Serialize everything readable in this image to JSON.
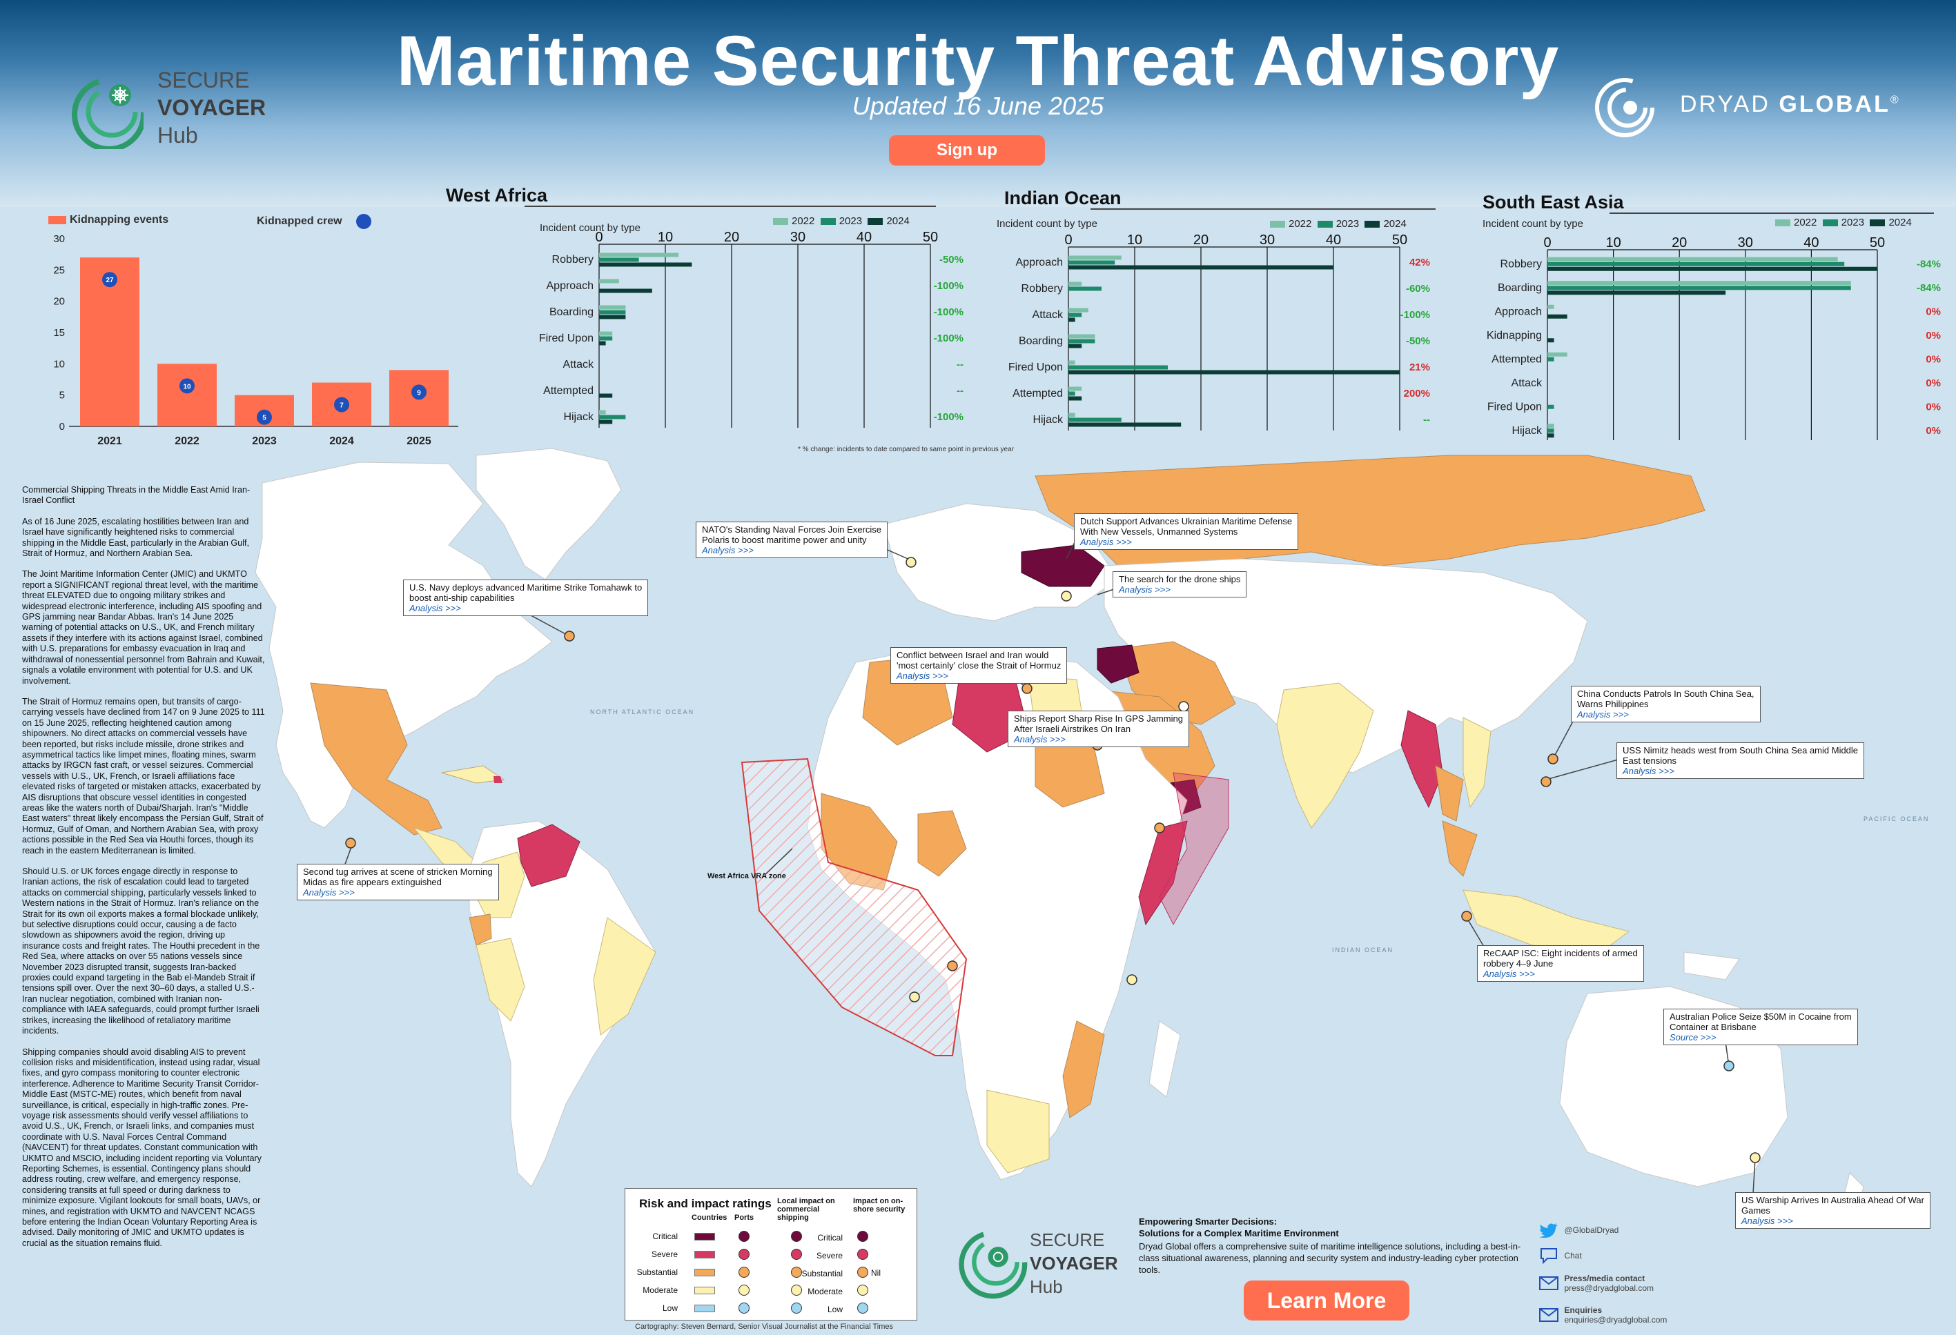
{
  "header": {
    "title": "Maritime Security Threat Advisory",
    "subtitle": "Updated 16 June 2025",
    "signup_label": "Sign up",
    "left_logo": {
      "line1": "SECURE",
      "line2": "VOYAGER",
      "line3": "Hub"
    },
    "right_logo": {
      "word1": "DRYAD",
      "word2": "GLOBAL",
      "mark": "®"
    }
  },
  "colors": {
    "critical": "#6f0a3c",
    "severe": "#d63a63",
    "substantial": "#f4a95a",
    "moderate": "#fdf1b0",
    "low": "#9fd6f0",
    "accent": "#ff6f4f",
    "y2022": "#7cc0a8",
    "y2023": "#1f8a6a",
    "y2024": "#0b3d36"
  },
  "chart_data": [
    {
      "type": "bar",
      "title": "West Africa",
      "categories": [
        "2021",
        "2022",
        "2023",
        "2024",
        "2025"
      ],
      "series": [
        {
          "name": "Kidnapping events",
          "values": [
            27,
            10,
            5,
            7,
            9
          ]
        },
        {
          "name": "Kidnapped crew",
          "values": [
            27,
            10,
            5,
            7,
            9
          ]
        }
      ],
      "ylim": [
        0,
        30
      ],
      "yticks": [
        "0",
        "5",
        "10",
        "15",
        "20",
        "25",
        "30"
      ]
    },
    {
      "type": "bar",
      "title": "West Africa",
      "ylabel": "Incident count by type",
      "orientation": "horizontal",
      "categories": [
        "Robbery",
        "Approach",
        "Boarding",
        "Fired Upon",
        "Attack",
        "Attempted",
        "Hijack"
      ],
      "series": [
        {
          "name": "2022",
          "values": [
            12,
            3,
            4,
            2,
            0,
            0,
            1
          ]
        },
        {
          "name": "2023",
          "values": [
            6,
            0,
            4,
            2,
            0,
            0,
            4
          ]
        },
        {
          "name": "2024",
          "values": [
            14,
            8,
            4,
            1,
            0,
            2,
            2
          ]
        }
      ],
      "change": [
        "-50%",
        "-100%",
        "-100%",
        "-100%",
        "--",
        "--",
        "-100%"
      ],
      "xlim": [
        0,
        50
      ],
      "xticks": [
        "0",
        "10",
        "20",
        "30",
        "40",
        "50"
      ]
    },
    {
      "type": "bar",
      "title": "Indian Ocean",
      "ylabel": "Incident count by type",
      "orientation": "horizontal",
      "categories": [
        "Approach",
        "Robbery",
        "Attack",
        "Boarding",
        "Fired Upon",
        "Attempted",
        "Hijack"
      ],
      "series": [
        {
          "name": "2022",
          "values": [
            8,
            2,
            3,
            4,
            1,
            2,
            1
          ]
        },
        {
          "name": "2023",
          "values": [
            7,
            5,
            2,
            4,
            15,
            1,
            8
          ]
        },
        {
          "name": "2024",
          "values": [
            40,
            0,
            1,
            2,
            50,
            2,
            17
          ]
        }
      ],
      "change": [
        "42%",
        "-60%",
        "-100%",
        "-50%",
        "21%",
        "200%",
        "--"
      ],
      "xlim": [
        0,
        50
      ],
      "xticks": [
        "0",
        "10",
        "20",
        "30",
        "40",
        "50"
      ]
    },
    {
      "type": "bar",
      "title": "South East Asia",
      "ylabel": "Incident count by type",
      "orientation": "horizontal",
      "categories": [
        "Robbery",
        "Boarding",
        "Approach",
        "Kidnapping",
        "Attempted",
        "Attack",
        "Fired Upon",
        "Hijack"
      ],
      "series": [
        {
          "name": "2022",
          "values": [
            44,
            46,
            1,
            0,
            3,
            0,
            0,
            1
          ]
        },
        {
          "name": "2023",
          "values": [
            45,
            46,
            0,
            0,
            1,
            0,
            1,
            1
          ]
        },
        {
          "name": "2024",
          "values": [
            50,
            27,
            3,
            1,
            0,
            0,
            0,
            1
          ]
        }
      ],
      "change": [
        "-84%",
        "-84%",
        "0%",
        "0%",
        "0%",
        "0%",
        "0%",
        "0%"
      ],
      "xlim": [
        0,
        50
      ],
      "xticks": [
        "0",
        "10",
        "20",
        "30",
        "40",
        "50"
      ]
    }
  ],
  "charts_note": "* % change: incidents to date compared to same point in previous year",
  "left_text": [
    "Commercial Shipping Threats in the Middle East Amid Iran-Israel Conflict",
    "As of 16 June 2025, escalating hostilities between Iran and Israel have significantly heightened risks to commercial shipping in the Middle East, particularly in the Arabian Gulf, Strait of Hormuz, and Northern Arabian Sea.",
    "The Joint Maritime Information Center (JMIC) and UKMTO report a SIGNIFICANT regional threat level, with the maritime threat ELEVATED due to ongoing military strikes and widespread electronic interference, including AIS spoofing and GPS jamming near Bandar Abbas. Iran's 14 June 2025 warning of potential attacks on U.S., UK, and French military assets if they interfere with its actions against Israel, combined with U.S. preparations for embassy evacuation in Iraq and withdrawal of nonessential personnel from Bahrain and Kuwait, signals a volatile environment with potential for U.S. and UK involvement.",
    "The Strait of Hormuz remains open, but transits of cargo-carrying vessels have declined from 147 on 9 June 2025 to 111 on 15 June 2025, reflecting heightened caution among shipowners. No direct attacks on commercial vessels have been reported, but risks include missile, drone strikes and asymmetrical tactics like limpet mines, floating mines, swarm attacks by IRGCN fast craft, or vessel seizures. Commercial vessels with U.S., UK, French, or Israeli affiliations face elevated risks of targeted or mistaken attacks, exacerbated by AIS disruptions that obscure vessel identities in congested areas like the waters north of Dubai/Sharjah. Iran's \"Middle East waters\" threat likely encompass the Persian Gulf, Strait of Hormuz, Gulf of Oman, and Northern Arabian Sea, with proxy actions possible in the Red Sea via Houthi forces, though its reach in the eastern Mediterranean is limited.",
    "Should U.S. or UK forces engage directly in response to Iranian actions, the risk of escalation could lead to targeted attacks on commercial shipping, particularly vessels linked to Western nations in the Strait of Hormuz. Iran's reliance on the Strait for its own oil exports makes a formal blockade unlikely, but selective disruptions could occur, causing a de facto slowdown as shipowners avoid the region, driving up insurance costs and freight rates. The Houthi precedent in the Red Sea, where attacks on over 55 nations vessels since November 2023 disrupted transit, suggests Iran-backed proxies could expand targeting in the Bab el-Mandeb Strait if tensions spill over. Over the next 30–60 days, a stalled U.S.-Iran nuclear negotiation, combined with Iranian non-compliance with IAEA safeguards, could prompt further Israeli strikes, increasing the likelihood of retaliatory maritime incidents.",
    "Shipping companies should avoid disabling AIS to prevent collision risks and misidentification, instead using radar, visual fixes, and gyro compass monitoring to counter electronic interference. Adherence to Maritime Security Transit Corridor-Middle East (MSTC-ME) routes, which benefit from naval surveillance, is critical, especially in high-traffic zones. Pre-voyage risk assessments should verify vessel affiliations to avoid U.S., UK, French, or Israeli links, and companies must coordinate with U.S. Naval Forces Central Command (NAVCENT) for threat updates. Constant communication with UKMTO and MSCIO, including incident reporting via Voluntary Reporting Schemes, is essential. Contingency plans should address routing, crew welfare, and emergency response, considering transits at full speed or during darkness to minimize exposure. Vigilant lookouts for small boats, UAVs, or mines, and registration with UKMTO and NAVCENT NCAGS before entering the Indian Ocean Voluntary Reporting Area is advised. Daily monitoring of JMIC and UKMTO updates is crucial as the situation remains fluid."
  ],
  "news": [
    {
      "text1": "NATO's Standing Naval Forces Join Exercise",
      "text2": "Polaris to boost maritime power and unity",
      "link": "Analysis >>>"
    },
    {
      "text1": "Dutch Support Advances Ukrainian Maritime Defense",
      "text2": "With New Vessels, Unmanned Systems",
      "link": "Analysis >>>"
    },
    {
      "text1": "U.S. Navy deploys advanced Maritime Strike Tomahawk to",
      "text2": "boost anti-ship capabilities",
      "link": "Analysis >>>"
    },
    {
      "text1": "The search for the drone ships",
      "text2": "",
      "link": "Analysis >>>"
    },
    {
      "text1": "Conflict between Israel and Iran would",
      "text2": "'most certainly' close the Strait of Hormuz",
      "link": "Analysis >>>"
    },
    {
      "text1": "Ships Report Sharp Rise In GPS Jamming",
      "text2": "After Israeli Airstrikes On Iran",
      "link": "Analysis >>>"
    },
    {
      "text1": "China Conducts Patrols In South China Sea,",
      "text2": "Warns Philippines",
      "link": "Analysis >>>"
    },
    {
      "text1": "USS Nimitz heads west from South China Sea amid Middle",
      "text2": "East tensions",
      "link": "Analysis >>>"
    },
    {
      "text1": "Second tug arrives at scene of stricken Morning",
      "text2": "Midas as fire appears extinguished",
      "link": "Analysis >>>"
    },
    {
      "text1": "ReCAAP ISC: Eight incidents of armed",
      "text2": "robbery 4–9 June",
      "link": "Analysis >>>"
    },
    {
      "text1": "Australian Police Seize $50M in Cocaine from",
      "text2": "Container at Brisbane",
      "link": "Source >>>"
    },
    {
      "text1": "US Warship Arrives In Australia Ahead Of War",
      "text2": "Games",
      "link": "Analysis >>>"
    }
  ],
  "map_labels": {
    "wa_zone": "West Africa VRA zone",
    "north_atlantic": "NORTH ATLANTIC OCEAN",
    "indian_ocean": "INDIAN OCEAN",
    "pacific": "PACIFIC OCEAN"
  },
  "risk_legend": {
    "title": "Risk and impact ratings",
    "col_countries": "Countries",
    "col_ports": "Ports",
    "col_local": "Local impact on commercial shipping",
    "col_onshore": "Impact on on-shore security",
    "levels": [
      "Critical",
      "Severe",
      "Substantial",
      "Moderate",
      "Low"
    ],
    "nil": "Nil"
  },
  "cta": {
    "heading1": "Empowering Smarter Decisions:",
    "heading2": "Solutions for a Complex Maritime Environment",
    "body": "Dryad Global offers a comprehensive suite of maritime intelligence solutions, including a best-in-class situational awareness, planning and security system and industry-leading cyber protection tools.",
    "learn_more": "Learn More"
  },
  "bottom_logo": {
    "line1": "SECURE",
    "line2": "VOYAGER",
    "line3": "Hub"
  },
  "contacts": {
    "twitter": "@GlobalDryad",
    "chat": "Chat",
    "press_label": "Press/media contact",
    "press_email": "press@dryadglobal.com",
    "enq_label": "Enquiries",
    "enq_email": "enquiries@dryadglobal.com"
  },
  "credit": "Cartography: Steven Bernard, Senior Visual Journalist at the Financial Times"
}
